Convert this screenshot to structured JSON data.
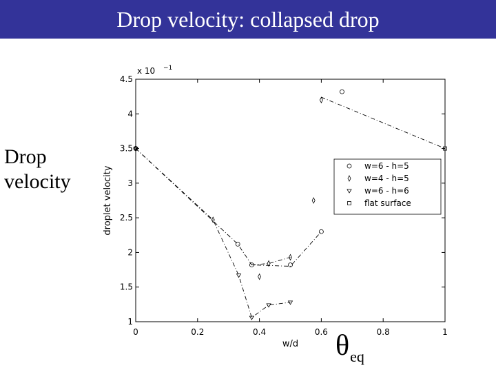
{
  "slide": {
    "title": "Drop velocity: collapsed drop",
    "side_label_line1": "Drop",
    "side_label_line2": "velocity",
    "theta_symbol": "θ",
    "theta_subscript": "eq",
    "title_bar_color": "#333399"
  },
  "chart_data": {
    "type": "scatter",
    "xlabel": "w/d",
    "ylabel": "droplet velocity",
    "exponent_label": "x 10",
    "exponent_power": "−1",
    "xlim": [
      0,
      1
    ],
    "ylim": [
      1,
      4.5
    ],
    "x_ticks": [
      0,
      0.2,
      0.4,
      0.6,
      0.8,
      1
    ],
    "x_tick_labels": [
      "0",
      "0.2",
      "0.4",
      "0.6",
      "0.8",
      "1"
    ],
    "y_ticks": [
      1,
      1.5,
      2,
      2.5,
      3,
      3.5,
      4,
      4.5
    ],
    "y_tick_labels": [
      "1",
      "1.5",
      "2",
      "2.5",
      "3",
      "3.5",
      "4",
      "4.5"
    ],
    "grid": false,
    "legend_position": "right",
    "series": [
      {
        "name": "w=6 - h=5",
        "marker": "circle",
        "points": [
          [
            0,
            3.5
          ],
          [
            0.33,
            2.12
          ],
          [
            0.375,
            1.82
          ],
          [
            0.5,
            1.82
          ],
          [
            0.6,
            2.3
          ],
          [
            0.667,
            4.32
          ]
        ]
      },
      {
        "name": "w=4 - h=5",
        "marker": "diamond",
        "points": [
          [
            0,
            3.5
          ],
          [
            0.25,
            2.47
          ],
          [
            0.4,
            1.65
          ],
          [
            0.43,
            1.84
          ],
          [
            0.5,
            1.93
          ],
          [
            0.575,
            2.75
          ],
          [
            0.6,
            4.2
          ]
        ]
      },
      {
        "name": "w=6 - h=6",
        "marker": "triangle-down",
        "points": [
          [
            0,
            3.5
          ],
          [
            0.333,
            1.67
          ],
          [
            0.375,
            1.06
          ],
          [
            0.43,
            1.24
          ],
          [
            0.5,
            1.28
          ]
        ]
      },
      {
        "name": "flat surface",
        "marker": "square",
        "points": [
          [
            1,
            3.5
          ]
        ]
      }
    ],
    "curves": [
      [
        [
          0,
          3.5
        ],
        [
          0.33,
          2.12
        ],
        [
          0.375,
          1.82
        ],
        [
          0.5,
          1.8
        ],
        [
          0.6,
          2.3
        ]
      ],
      [
        [
          0,
          3.5
        ],
        [
          0.25,
          2.47
        ],
        [
          0.333,
          1.67
        ],
        [
          0.375,
          1.06
        ],
        [
          0.43,
          1.24
        ],
        [
          0.5,
          1.28
        ]
      ],
      [
        [
          0.375,
          1.82
        ],
        [
          0.43,
          1.84
        ],
        [
          0.5,
          1.93
        ]
      ],
      [
        [
          0.6,
          4.24
        ],
        [
          1,
          3.5
        ]
      ]
    ]
  }
}
